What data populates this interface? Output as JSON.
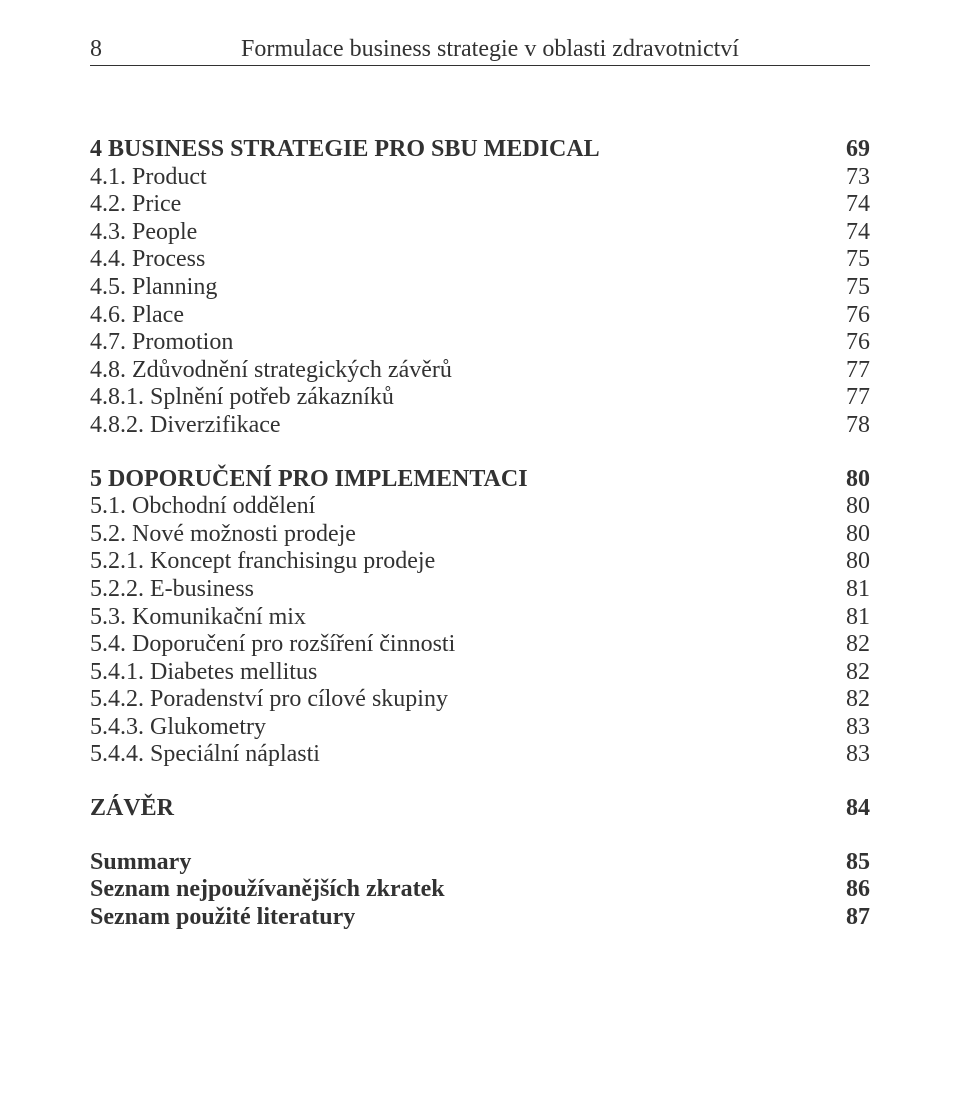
{
  "header": {
    "page_number": "8",
    "title": "Formulace business strategie v oblasti zdravotnictví"
  },
  "toc": [
    {
      "label": "4 BUSINESS STRATEGIE PRO SBU MEDICAL",
      "page": "69",
      "bold": true,
      "gap": "lg"
    },
    {
      "label": "4.1. Product",
      "page": "73"
    },
    {
      "label": "4.2. Price",
      "page": "74"
    },
    {
      "label": "4.3. People",
      "page": "74"
    },
    {
      "label": "4.4. Process",
      "page": "75"
    },
    {
      "label": "4.5. Planning",
      "page": "75"
    },
    {
      "label": "4.6. Place",
      "page": "76"
    },
    {
      "label": "4.7. Promotion",
      "page": "76"
    },
    {
      "label": "4.8. Zdůvodnění strategických závěrů",
      "page": "77"
    },
    {
      "label": "4.8.1. Splnění potřeb zákazníků",
      "page": "77"
    },
    {
      "label": "4.8.2. Diverzifikace",
      "page": "78"
    },
    {
      "label": "5 DOPORUČENÍ PRO IMPLEMENTACI",
      "page": "80",
      "bold": true,
      "gap": "md"
    },
    {
      "label": "5.1. Obchodní oddělení",
      "page": "80"
    },
    {
      "label": "5.2. Nové možnosti prodeje",
      "page": "80"
    },
    {
      "label": "5.2.1. Koncept franchisingu prodeje",
      "page": "80"
    },
    {
      "label": "5.2.2. E-business",
      "page": "81"
    },
    {
      "label": "5.3. Komunikační mix",
      "page": "81"
    },
    {
      "label": "5.4. Doporučení pro rozšíření činnosti",
      "page": "82"
    },
    {
      "label": "5.4.1. Diabetes mellitus",
      "page": "82"
    },
    {
      "label": "5.4.2. Poradenství pro cílové skupiny",
      "page": "82"
    },
    {
      "label": "5.4.3. Glukometry",
      "page": "83"
    },
    {
      "label": "5.4.4. Speciální náplasti",
      "page": "83"
    },
    {
      "label": "ZÁVĚR",
      "page": "84",
      "bold": true,
      "gap": "md"
    },
    {
      "label": "Summary",
      "page": "85",
      "bold": true,
      "gap": "md"
    },
    {
      "label": "Seznam nejpoužívanějších zkratek",
      "page": "86",
      "bold": true
    },
    {
      "label": "Seznam použité literatury",
      "page": "87",
      "bold": true
    }
  ]
}
